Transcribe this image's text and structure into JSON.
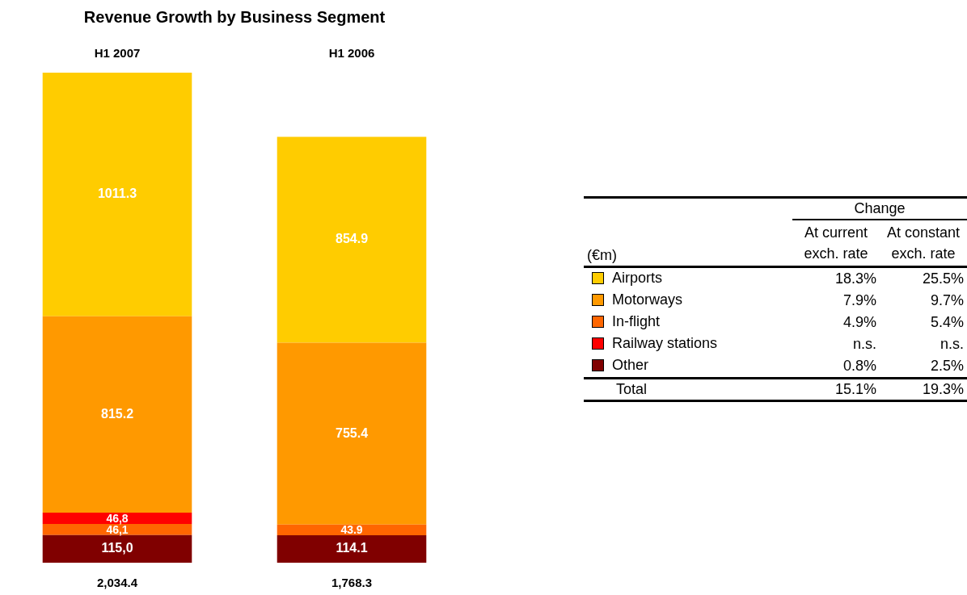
{
  "chart_data": [
    {
      "type": "bar",
      "title": "Revenue Growth by Business Segment",
      "categories": [
        "H1 2007",
        "H1 2006"
      ],
      "stacked": true,
      "data_labels": true,
      "totals": [
        "2,034.4",
        "1,768.3"
      ],
      "series": [
        {
          "color": "#800000",
          "values": [
            115.0,
            114.1
          ],
          "value_labels": [
            "115,0",
            "114.1"
          ]
        },
        {
          "color": "#ff6600",
          "values": [
            46.1,
            43.9
          ],
          "value_labels": [
            "46,1",
            "43.9"
          ]
        },
        {
          "color": "#ff0000",
          "values": [
            46.8,
            null
          ],
          "value_labels": [
            "46,8",
            null
          ]
        },
        {
          "color": "#ff9900",
          "values": [
            815.2,
            755.4
          ],
          "value_labels": [
            "815.2",
            "755.4"
          ]
        },
        {
          "color": "#ffcc00",
          "values": [
            1011.3,
            854.9
          ],
          "value_labels": [
            "1011.3",
            "854.9"
          ]
        }
      ]
    },
    {
      "type": "other",
      "title": "Change",
      "subtitle": "(€m)",
      "categories": [
        "Airports",
        "Motorways",
        "In-flight",
        "Railway stations",
        "Other",
        "Total"
      ],
      "colors": [
        "#ffcc00",
        "#ff9900",
        "#ff6600",
        "#ff0000",
        "#800000",
        null
      ],
      "series": [
        {
          "name": "At current exch. rate",
          "values": [
            18.3,
            7.9,
            4.9,
            null,
            0.8,
            15.1
          ],
          "value_labels": [
            "18.3%",
            "7.9%",
            "4.9%",
            "n.s.",
            "0.8%",
            "15.1%"
          ]
        },
        {
          "name": "At constant exch. rate",
          "values": [
            25.5,
            9.7,
            5.4,
            null,
            2.5,
            19.3
          ],
          "value_labels": [
            "25.5%",
            "9.7%",
            "5.4%",
            "n.s.",
            "2.5%",
            "19.3%"
          ]
        }
      ]
    }
  ]
}
